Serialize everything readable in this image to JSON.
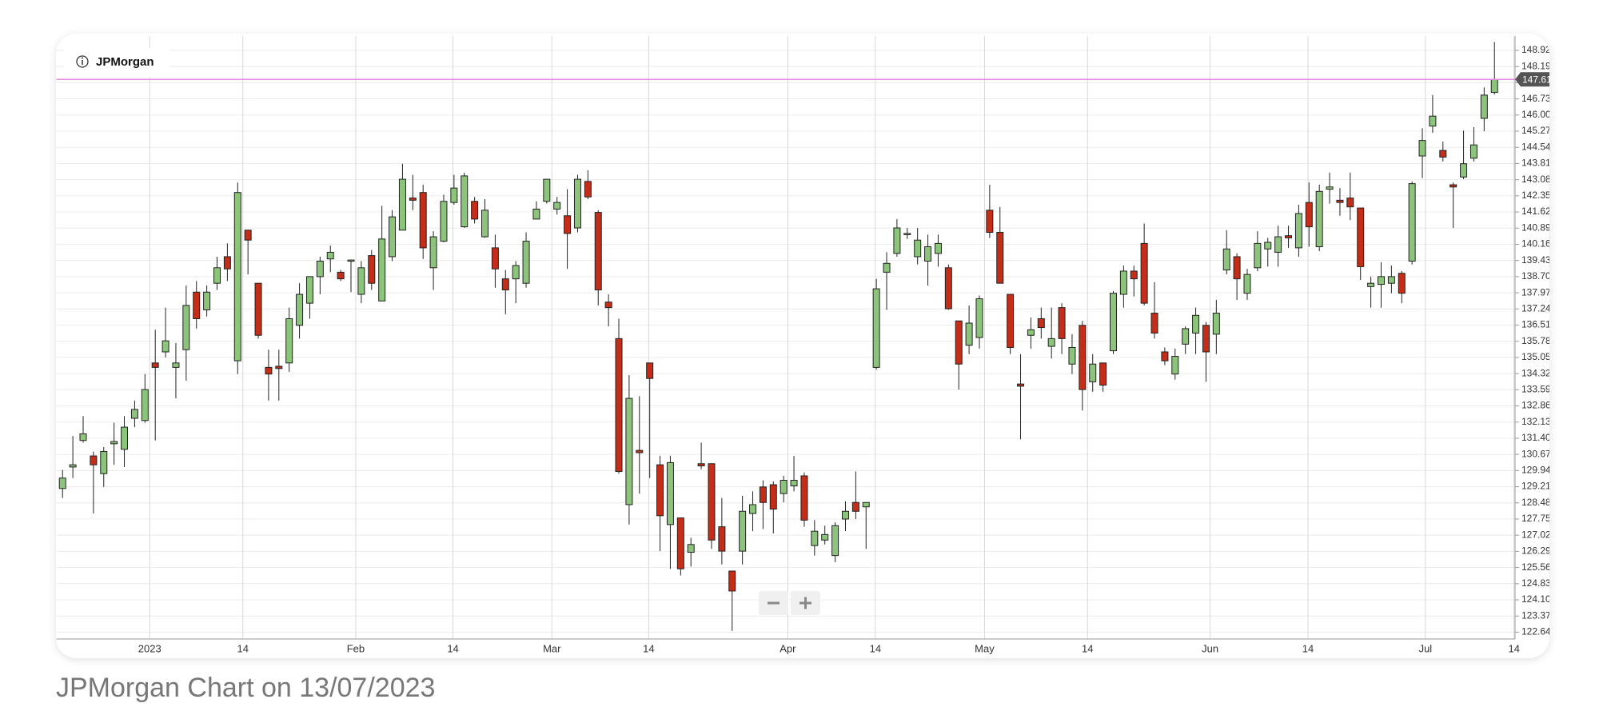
{
  "chart_data": {
    "type": "candlestick",
    "title": "JPMorgan",
    "caption": "JPMorgan Chart on 13/07/2023",
    "up_color": "#8cc47c",
    "down_color": "#c42d18",
    "price_line_color": "#e88ee6",
    "last_price": 147.61,
    "grid": true,
    "ylim": [
      122.33,
      149.57
    ],
    "xlim": [
      -0.6,
      141.0
    ],
    "yticks": [
      122.64,
      123.37,
      {
        "value": 124.1,
        "label": "124.10"
      },
      124.83,
      125.56,
      126.29,
      127.02,
      127.75,
      128.48,
      129.21,
      129.94,
      130.67,
      {
        "value": 131.4,
        "label": "131.40"
      },
      132.13,
      132.86,
      133.59,
      134.32,
      135.05,
      135.78,
      136.51,
      137.24,
      137.97,
      {
        "value": 138.7,
        "label": "138.70"
      },
      139.43,
      140.16,
      140.89,
      141.62,
      142.35,
      143.08,
      143.81,
      144.54,
      145.27,
      {
        "value": 146,
        "label": "146.00"
      },
      146.73,
      147.46,
      148.19,
      148.92
    ],
    "xticks": [
      {
        "value": 8.46,
        "label": "2023"
      },
      {
        "value": 17.5,
        "label": "14"
      },
      {
        "value": 28.46,
        "label": "Feb"
      },
      {
        "value": 37.9,
        "label": "14"
      },
      {
        "value": 47.5,
        "label": "Mar"
      },
      {
        "value": 56.9,
        "label": "14"
      },
      {
        "value": 70.4,
        "label": "Apr"
      },
      {
        "value": 78.9,
        "label": "14"
      },
      {
        "value": 89.5,
        "label": "May"
      },
      {
        "value": 99.5,
        "label": "14"
      },
      {
        "value": 111.4,
        "label": "Jun"
      },
      {
        "value": 120.9,
        "label": "14"
      },
      {
        "value": 132.3,
        "label": "Jul"
      },
      {
        "value": 140.9,
        "label": "14"
      }
    ],
    "open": [
      129.13,
      130.1,
      131.3,
      130.6,
      129.8,
      131.15,
      130.9,
      132.3,
      132.2,
      134.8,
      135.3,
      134.6,
      135.4,
      138.0,
      137.2,
      138.4,
      139.6,
      134.9,
      140.8,
      138.4,
      134.6,
      134.65,
      134.8,
      136.5,
      137.5,
      138.7,
      139.5,
      138.9,
      139.4,
      137.9,
      139.65,
      137.6,
      139.6,
      140.8,
      142.25,
      142.5,
      139.1,
      140.3,
      142.05,
      140.95,
      142.1,
      140.5,
      140.0,
      138.6,
      138.6,
      138.4,
      141.3,
      142.1,
      141.75,
      141.45,
      140.9,
      143.0,
      141.6,
      137.55,
      135.9,
      128.4,
      130.85,
      134.8,
      130.2,
      127.5,
      127.8,
      126.25,
      130.25,
      130.25,
      127.4,
      125.4,
      126.3,
      128.0,
      129.2,
      129.3,
      128.9,
      129.25,
      129.7,
      126.55,
      126.8,
      126.1,
      127.75,
      128.5,
      128.3,
      134.6,
      138.9,
      139.75,
      140.6,
      139.6,
      139.4,
      139.75,
      139.1,
      136.7,
      135.6,
      135.95,
      141.7,
      140.7,
      137.9,
      133.85,
      136.05,
      136.8,
      135.55,
      137.3,
      134.75,
      136.5,
      133.95,
      134.8,
      135.35,
      137.9,
      138.95,
      140.2,
      137.05,
      135.3,
      134.3,
      135.65,
      136.15,
      136.5,
      136.1,
      139.0,
      139.6,
      137.95,
      139.1,
      139.95,
      139.8,
      140.55,
      140.0,
      142.05,
      140.05,
      142.65,
      142.15,
      142.25,
      141.8,
      138.25,
      138.35,
      138.4,
      138.85,
      139.4,
      144.15,
      145.5,
      144.4,
      142.85,
      143.2,
      144.05,
      145.85,
      147.02
    ],
    "high": [
      129.97,
      131.5,
      132.4,
      130.8,
      131.0,
      132.1,
      132.4,
      133.1,
      134.3,
      136.3,
      137.3,
      135.7,
      138.3,
      138.5,
      138.3,
      139.6,
      140.2,
      142.95,
      140.8,
      138.4,
      135.4,
      135.4,
      137.3,
      138.4,
      138.7,
      139.6,
      140.1,
      139.0,
      139.45,
      139.4,
      139.9,
      141.9,
      141.7,
      143.8,
      143.3,
      142.85,
      140.75,
      142.4,
      143.3,
      143.4,
      142.3,
      142.2,
      140.6,
      139.0,
      139.4,
      140.7,
      142.1,
      143.1,
      142.3,
      142.65,
      143.3,
      143.5,
      141.7,
      137.9,
      136.8,
      134.25,
      133.3,
      134.8,
      130.6,
      130.6,
      127.8,
      126.9,
      131.2,
      130.25,
      128.7,
      125.4,
      128.8,
      129.0,
      129.5,
      129.45,
      129.7,
      130.6,
      129.85,
      127.7,
      127.45,
      127.6,
      128.55,
      129.9,
      128.5,
      138.6,
      139.8,
      141.3,
      140.9,
      140.9,
      140.6,
      140.6,
      139.25,
      136.7,
      137.4,
      137.85,
      142.85,
      141.85,
      137.9,
      135.2,
      136.85,
      137.3,
      137.3,
      137.5,
      136.1,
      136.7,
      135.2,
      134.8,
      138.05,
      139.2,
      139.2,
      141.1,
      138.45,
      135.5,
      135.45,
      136.45,
      137.3,
      136.65,
      137.65,
      140.8,
      139.75,
      139.05,
      140.75,
      140.45,
      141.0,
      141.0,
      141.95,
      142.95,
      142.85,
      143.4,
      142.7,
      143.4,
      141.8,
      138.7,
      139.35,
      139.2,
      138.95,
      143.0,
      145.4,
      146.9,
      144.8,
      142.95,
      145.3,
      145.45,
      147.25,
      149.3
    ],
    "low": [
      128.7,
      129.6,
      131.2,
      128.0,
      129.2,
      130.2,
      130.1,
      131.9,
      132.1,
      131.3,
      135.05,
      133.2,
      134.0,
      136.35,
      136.9,
      138.1,
      138.5,
      134.3,
      138.8,
      135.9,
      133.1,
      133.1,
      134.4,
      135.9,
      136.8,
      137.9,
      138.9,
      138.5,
      138.0,
      137.5,
      138.1,
      137.6,
      139.4,
      140.8,
      141.7,
      139.5,
      138.1,
      140.25,
      141.95,
      140.9,
      141.1,
      140.45,
      138.2,
      137.0,
      137.5,
      138.2,
      141.3,
      142.0,
      141.5,
      139.05,
      140.7,
      142.2,
      137.4,
      136.45,
      129.8,
      127.5,
      128.9,
      129.6,
      126.3,
      125.5,
      125.2,
      125.6,
      130.0,
      126.4,
      125.7,
      122.7,
      125.7,
      127.2,
      127.3,
      127.1,
      128.5,
      129.0,
      127.4,
      126.1,
      126.6,
      125.8,
      127.2,
      127.75,
      126.4,
      134.5,
      137.2,
      139.6,
      140.4,
      139.25,
      138.3,
      139.15,
      137.2,
      133.6,
      135.2,
      135.45,
      140.45,
      138.4,
      135.2,
      131.35,
      135.45,
      135.9,
      135.0,
      135.2,
      134.3,
      132.65,
      133.5,
      133.5,
      135.2,
      137.3,
      137.8,
      137.4,
      135.9,
      134.7,
      134.05,
      135.2,
      135.2,
      133.95,
      135.2,
      138.8,
      137.65,
      137.65,
      138.95,
      139.15,
      139.15,
      140.0,
      139.6,
      140.05,
      139.85,
      142.0,
      141.45,
      141.25,
      138.55,
      137.3,
      137.3,
      137.95,
      137.5,
      139.25,
      143.15,
      145.2,
      143.9,
      140.9,
      143.1,
      143.9,
      145.27,
      146.92
    ],
    "close": [
      129.6,
      130.2,
      131.6,
      130.2,
      130.8,
      131.25,
      131.9,
      132.7,
      133.6,
      134.6,
      135.8,
      134.8,
      137.4,
      136.8,
      138.0,
      139.1,
      139.05,
      142.5,
      140.35,
      136.05,
      134.3,
      134.55,
      136.8,
      137.9,
      138.7,
      139.4,
      139.8,
      138.6,
      139.45,
      139.1,
      138.4,
      140.4,
      141.4,
      143.1,
      142.15,
      140.0,
      140.5,
      142.1,
      142.7,
      143.25,
      141.3,
      141.7,
      139.05,
      138.1,
      139.2,
      140.3,
      141.75,
      143.1,
      142.05,
      140.65,
      143.1,
      142.3,
      138.1,
      137.3,
      129.9,
      133.2,
      130.75,
      134.1,
      127.9,
      130.3,
      125.5,
      126.6,
      130.15,
      126.8,
      126.3,
      124.5,
      128.1,
      128.4,
      128.5,
      128.2,
      129.5,
      129.5,
      127.7,
      127.2,
      127.05,
      127.45,
      128.1,
      128.1,
      128.5,
      138.15,
      139.3,
      140.9,
      140.65,
      140.35,
      140.05,
      140.2,
      137.25,
      134.75,
      136.6,
      137.7,
      140.7,
      138.4,
      135.5,
      133.75,
      136.3,
      136.4,
      135.9,
      135.9,
      135.5,
      133.6,
      134.75,
      133.8,
      137.95,
      138.95,
      138.6,
      137.5,
      136.15,
      134.9,
      135.1,
      136.35,
      136.95,
      135.3,
      137.05,
      139.95,
      138.6,
      138.8,
      140.2,
      140.25,
      140.5,
      140.45,
      141.55,
      140.95,
      142.55,
      142.75,
      142.05,
      141.85,
      139.15,
      138.4,
      138.7,
      138.7,
      137.95,
      142.9,
      144.85,
      145.95,
      144.1,
      142.75,
      143.8,
      144.65,
      146.9,
      147.61
    ]
  }
}
